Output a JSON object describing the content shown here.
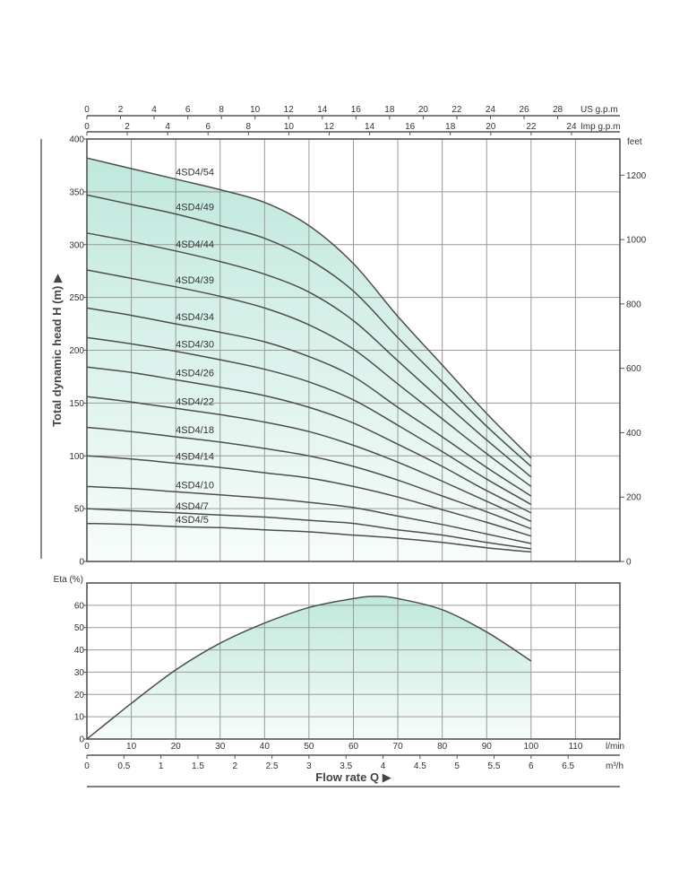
{
  "chart_data": [
    {
      "type": "line",
      "panel": "head",
      "ylabel": "Total dynamic head   H (m)",
      "xlim": [
        0,
        120
      ],
      "ylim": [
        0,
        400
      ],
      "y_ticks": [
        0,
        50,
        100,
        150,
        200,
        250,
        300,
        350,
        400
      ],
      "right_axis": {
        "unit": "feet",
        "ticks": [
          0,
          200,
          400,
          600,
          800,
          1000,
          1200
        ]
      },
      "top_axes": [
        {
          "unit": "US g.p.m",
          "ticks": [
            0,
            2,
            4,
            6,
            8,
            10,
            12,
            14,
            16,
            18,
            20,
            22,
            24,
            26,
            28
          ]
        },
        {
          "unit": "Imp g.p.m",
          "ticks": [
            0,
            2,
            4,
            6,
            8,
            10,
            12,
            14,
            16,
            18,
            20,
            22,
            24
          ]
        }
      ],
      "grid": true,
      "x": [
        0,
        10,
        20,
        30,
        40,
        50,
        60,
        70,
        80,
        90,
        100
      ],
      "series": [
        {
          "name": "4SD4/54",
          "values": [
            382,
            372,
            362,
            352,
            340,
            318,
            282,
            232,
            186,
            140,
            98
          ]
        },
        {
          "name": "4SD4/49",
          "values": [
            347,
            338,
            329,
            318,
            306,
            286,
            256,
            212,
            170,
            128,
            90
          ]
        },
        {
          "name": "4SD4/44",
          "values": [
            311,
            303,
            294,
            284,
            272,
            255,
            228,
            190,
            152,
            115,
            80
          ]
        },
        {
          "name": "4SD4/39",
          "values": [
            276,
            268,
            260,
            251,
            240,
            224,
            201,
            168,
            135,
            102,
            71
          ]
        },
        {
          "name": "4SD4/34",
          "values": [
            240,
            233,
            225,
            217,
            208,
            194,
            175,
            146,
            118,
            89,
            62
          ]
        },
        {
          "name": "4SD4/30",
          "values": [
            212,
            206,
            199,
            191,
            182,
            170,
            153,
            129,
            104,
            78,
            54
          ]
        },
        {
          "name": "4SD4/26",
          "values": [
            184,
            179,
            172,
            165,
            157,
            146,
            131,
            111,
            90,
            67,
            46
          ]
        },
        {
          "name": "4SD4/22",
          "values": [
            156,
            151,
            145,
            139,
            132,
            123,
            110,
            94,
            76,
            57,
            38
          ]
        },
        {
          "name": "4SD4/18",
          "values": [
            127,
            123,
            118,
            113,
            107,
            100,
            90,
            77,
            62,
            47,
            31
          ]
        },
        {
          "name": "4SD4/14",
          "values": [
            100,
            97,
            93,
            89,
            84,
            79,
            71,
            61,
            49,
            37,
            24
          ]
        },
        {
          "name": "4SD4/10",
          "values": [
            71,
            69,
            66,
            63,
            60,
            56,
            51,
            43,
            35,
            26,
            17
          ]
        },
        {
          "name": "4SD4/7",
          "values": [
            50,
            48,
            46,
            44,
            42,
            39,
            36,
            30,
            25,
            18,
            12
          ]
        },
        {
          "name": "4SD4/5",
          "values": [
            36,
            35,
            33,
            32,
            30,
            28,
            25,
            22,
            18,
            13,
            9
          ]
        }
      ]
    },
    {
      "type": "area",
      "panel": "efficiency",
      "ylabel": "Eta (%)",
      "xlim": [
        0,
        120
      ],
      "ylim": [
        0,
        70
      ],
      "y_ticks": [
        0,
        10,
        20,
        30,
        40,
        50,
        60
      ],
      "grid": true,
      "x": [
        0,
        10,
        20,
        30,
        40,
        50,
        60,
        65,
        70,
        80,
        90,
        100
      ],
      "series": [
        {
          "name": "Eta",
          "values": [
            0,
            16,
            31,
            43,
            52,
            59,
            63,
            64,
            63,
            58,
            48,
            35
          ]
        }
      ]
    }
  ],
  "flow_axes": [
    {
      "unit": "l/min",
      "ticks": [
        0,
        10,
        20,
        30,
        40,
        50,
        60,
        70,
        80,
        90,
        100,
        110
      ]
    },
    {
      "unit": "m³/h",
      "ticks": [
        0,
        0.5,
        1,
        1.5,
        2,
        2.5,
        3,
        3.5,
        4,
        4.5,
        5,
        5.5,
        6,
        6.5
      ]
    }
  ],
  "xlabel": "Flow rate  Q",
  "colors": {
    "fill_top": "#bfe8dc",
    "fill_bottom": "#f7fcfb",
    "curve": "#4d4d4d",
    "grid": "#9a9a9a",
    "text": "#333333"
  }
}
